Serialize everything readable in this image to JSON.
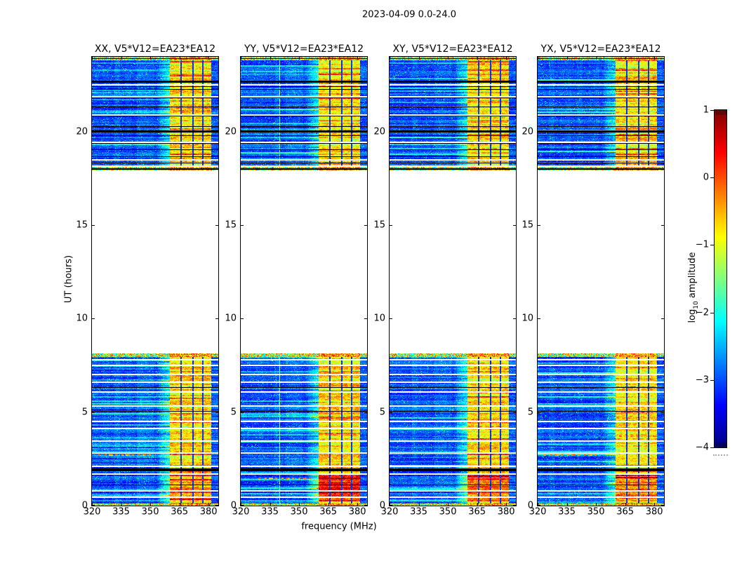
{
  "title": "2023-04-09 0.0-24.0",
  "chart_data": {
    "type": "heatmap",
    "title": "2023-04-09 0.0-24.0",
    "xlabel": "frequency (MHz)",
    "ylabel": "UT (hours)",
    "xlim": [
      320,
      385
    ],
    "ylim": [
      0,
      24
    ],
    "xtick_values": [
      320,
      335,
      350,
      365,
      380
    ],
    "xtick_labels": [
      "320",
      "335",
      "350",
      "365",
      "380"
    ],
    "ytick_values": [
      0,
      5,
      10,
      15,
      20
    ],
    "ytick_labels": [
      "0",
      "5",
      "10",
      "15",
      "20"
    ],
    "colorbar": {
      "label_prefix": "log",
      "label_subscript": "10",
      "label_suffix": " amplitude",
      "colormap": "jet",
      "vmin": -4,
      "vmax": 1,
      "tick_values": [
        1,
        0,
        -1,
        -2,
        -3,
        -4
      ],
      "tick_labels": [
        "1",
        "0",
        "−1",
        "−2",
        "−3",
        "−4"
      ]
    },
    "panels": [
      {
        "label": "XX, V5*V12=EA23*EA12",
        "seed": 101,
        "bottom_hot": 0.45,
        "streaks": [
          {
            "t": 2.72,
            "f": [
              322,
              352
            ],
            "v": -0.4,
            "dashed": true
          },
          {
            "t": 1.42,
            "f": [
              360,
              381.3
            ],
            "v": 0.25,
            "dashed": false
          }
        ]
      },
      {
        "label": "YY, V5*V12=EA23*EA12",
        "seed": 202,
        "bottom_hot": 0.75,
        "vline_mhz": 340.2,
        "streaks": [
          {
            "t": 1.5,
            "f": [
              329,
              356
            ],
            "v": -0.3,
            "dashed": true
          },
          {
            "t": 1.5,
            "f": [
              360,
              381.3
            ],
            "v": 0.8,
            "dashed": false
          }
        ]
      },
      {
        "label": "XY, V5*V12=EA23*EA12",
        "seed": 303,
        "bottom_hot": 0.55,
        "streaks": [
          {
            "t": 1.45,
            "f": [
              360,
              381.3
            ],
            "v": 0.3,
            "dashed": false
          }
        ]
      },
      {
        "label": "YX, V5*V12=EA23*EA12",
        "seed": 404,
        "bottom_hot": 0.65,
        "streaks": [
          {
            "t": 2.72,
            "f": [
              322,
              352
            ],
            "v": -0.35,
            "dashed": true
          },
          {
            "t": 1.55,
            "f": [
              360,
              381.3
            ],
            "v": 0.7,
            "dashed": false
          }
        ]
      }
    ],
    "time_segments": [
      [
        0,
        8.12
      ],
      [
        17.93,
        24.0
      ]
    ],
    "rfi_band_mhz": [
      360,
      381.3
    ],
    "subband_separators_mhz": [
      365.9,
      372.0,
      377.2
    ],
    "noise_levels": {
      "background_log10_amp": -2.95,
      "rfi_band_log10_amp": -0.78
    },
    "flagged_times_white": [
      22.52,
      21.89,
      20.94,
      19.47,
      18.54,
      18.19,
      7.85,
      7.55,
      7.05,
      6.65,
      6.1,
      5.35,
      4.55,
      4.15,
      3.5,
      2.85,
      2.15,
      1.72,
      0.84,
      0.49
    ],
    "flagged_times_black": [
      [
        23.93,
        1
      ],
      [
        22.72,
        3
      ],
      [
        22.41,
        1
      ],
      [
        22.26,
        1
      ],
      [
        21.81,
        1
      ],
      [
        21.35,
        1
      ],
      [
        20.85,
        1
      ],
      [
        20.29,
        1
      ],
      [
        20.06,
        3
      ],
      [
        19.79,
        1
      ],
      [
        19.39,
        1
      ],
      [
        19.04,
        1
      ],
      [
        18.66,
        1
      ],
      [
        18.35,
        1
      ],
      [
        18.05,
        2
      ],
      [
        6.35,
        1
      ],
      [
        5.05,
        1
      ],
      [
        2.0,
        4
      ],
      [
        1.12,
        1
      ]
    ]
  },
  "layout_colors": {
    "axis": "#000000",
    "background": "#ffffff"
  }
}
